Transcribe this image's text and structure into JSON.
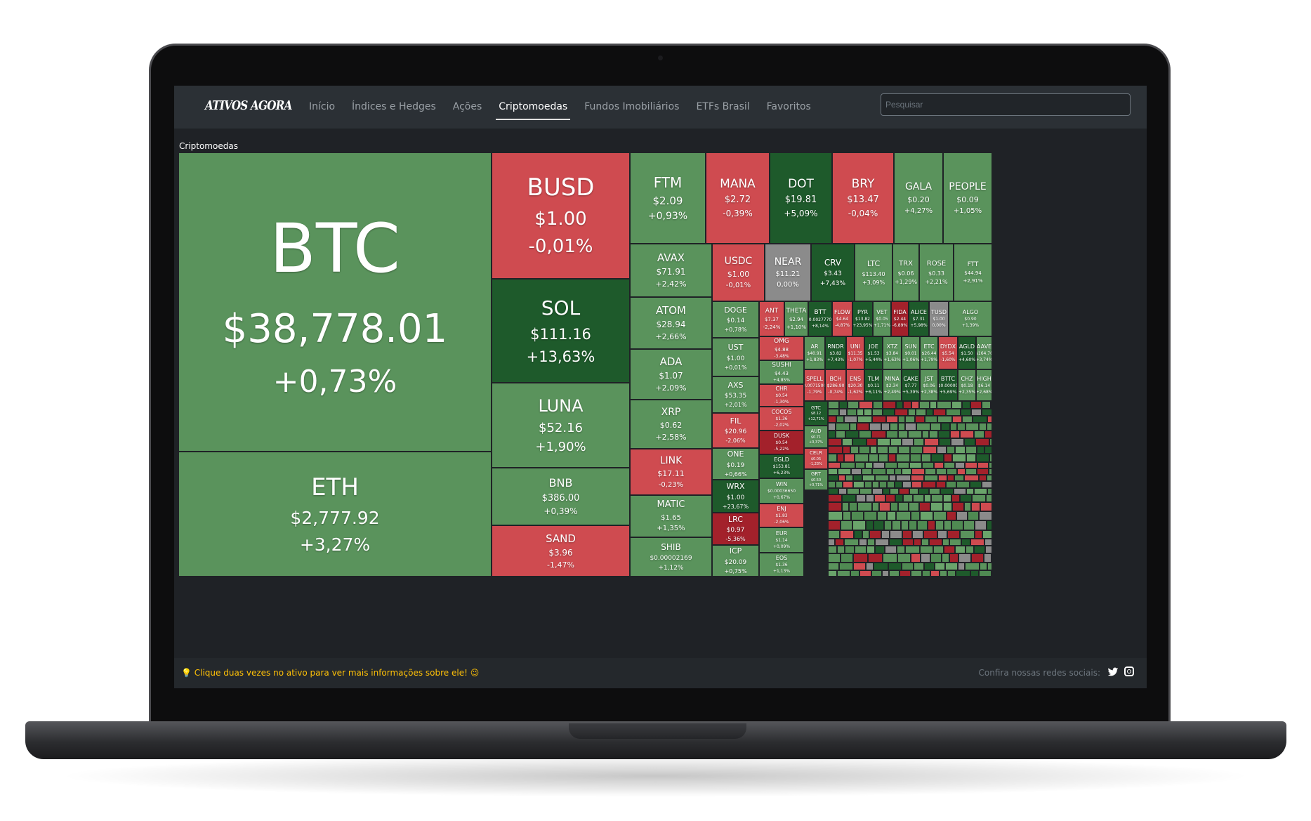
{
  "nav": {
    "logo": "ATIVOS AGORA",
    "items": [
      {
        "label": "Início",
        "active": false
      },
      {
        "label": "Índices e Hedges",
        "active": false
      },
      {
        "label": "Ações",
        "active": false
      },
      {
        "label": "Criptomoedas",
        "active": true
      },
      {
        "label": "Fundos Imobiliários",
        "active": false
      },
      {
        "label": "ETFs Brasil",
        "active": false
      },
      {
        "label": "Favoritos",
        "active": false
      }
    ],
    "search_placeholder": "Pesquisar"
  },
  "section_title": "Criptomoedas",
  "colors": {
    "green": "#5a935c",
    "dark_green": "#1e5a2b",
    "red": "#cf4b50",
    "dark_red": "#a3212b",
    "gray": "#8b8b8b"
  },
  "tiles": [
    {
      "symbol": "BTC",
      "price": "$38,778.01",
      "change": "+0,73%",
      "color": "green"
    },
    {
      "symbol": "ETH",
      "price": "$2,777.92",
      "change": "+3,27%",
      "color": "green"
    },
    {
      "symbol": "BUSD",
      "price": "$1.00",
      "change": "-0,01%",
      "color": "red"
    },
    {
      "symbol": "SOL",
      "price": "$111.16",
      "change": "+13,63%",
      "color": "dark_green"
    },
    {
      "symbol": "LUNA",
      "price": "$52.16",
      "change": "+1,90%",
      "color": "green"
    },
    {
      "symbol": "BNB",
      "price": "$386.00",
      "change": "+0,39%",
      "color": "green"
    },
    {
      "symbol": "SAND",
      "price": "$3.96",
      "change": "-1,47%",
      "color": "red"
    },
    {
      "symbol": "FTM",
      "price": "$2.09",
      "change": "+0,93%",
      "color": "green"
    },
    {
      "symbol": "MANA",
      "price": "$2.72",
      "change": "-0,39%",
      "color": "red"
    },
    {
      "symbol": "DOT",
      "price": "$19.81",
      "change": "+5,09%",
      "color": "dark_green"
    },
    {
      "symbol": "BRY",
      "price": "$13.47",
      "change": "-0,04%",
      "color": "red"
    },
    {
      "symbol": "GALA",
      "price": "$0.20",
      "change": "+4,27%",
      "color": "green"
    },
    {
      "symbol": "PEOPLE",
      "price": "$0.09",
      "change": "+1,05%",
      "color": "green"
    },
    {
      "symbol": "AVAX",
      "price": "$71.91",
      "change": "+2,42%",
      "color": "green"
    },
    {
      "symbol": "USDC",
      "price": "$1.00",
      "change": "-0,01%",
      "color": "red"
    },
    {
      "symbol": "NEAR",
      "price": "$11.21",
      "change": "0,00%",
      "color": "gray"
    },
    {
      "symbol": "CRV",
      "price": "$3.43",
      "change": "+7,43%",
      "color": "dark_green"
    },
    {
      "symbol": "LTC",
      "price": "$113.40",
      "change": "+3,09%",
      "color": "green"
    },
    {
      "symbol": "TRX",
      "price": "$0.06",
      "change": "+1,29%",
      "color": "green"
    },
    {
      "symbol": "ROSE",
      "price": "$0.33",
      "change": "+2,21%",
      "color": "green"
    },
    {
      "symbol": "FTT",
      "price": "$44.94",
      "change": "+2,91%",
      "color": "green"
    },
    {
      "symbol": "ATOM",
      "price": "$28.94",
      "change": "+2,66%",
      "color": "green"
    },
    {
      "symbol": "ADA",
      "price": "$1.07",
      "change": "+2,09%",
      "color": "green"
    },
    {
      "symbol": "XRP",
      "price": "$0.62",
      "change": "+2,58%",
      "color": "green"
    },
    {
      "symbol": "LINK",
      "price": "$17.11",
      "change": "-0,23%",
      "color": "red"
    },
    {
      "symbol": "MATIC",
      "price": "$1.65",
      "change": "+1,35%",
      "color": "green"
    },
    {
      "symbol": "SHIB",
      "price": "$0.00002169",
      "change": "+1,12%",
      "color": "green"
    },
    {
      "symbol": "DOGE",
      "price": "$0.14",
      "change": "+0,78%",
      "color": "green"
    },
    {
      "symbol": "UST",
      "price": "$1.00",
      "change": "+0,01%",
      "color": "green"
    },
    {
      "symbol": "AXS",
      "price": "$53.35",
      "change": "+2,01%",
      "color": "green"
    },
    {
      "symbol": "FIL",
      "price": "$20.96",
      "change": "-2,06%",
      "color": "red"
    },
    {
      "symbol": "ONE",
      "price": "$0.19",
      "change": "+0,66%",
      "color": "green"
    },
    {
      "symbol": "WRX",
      "price": "$1.00",
      "change": "+23,67%",
      "color": "dark_green"
    },
    {
      "symbol": "LRC",
      "price": "$0.97",
      "change": "-5,36%",
      "color": "dark_red"
    },
    {
      "symbol": "ICP",
      "price": "$20.09",
      "change": "+0,75%",
      "color": "green"
    },
    {
      "symbol": "ANT",
      "price": "$7.37",
      "change": "-2,24%",
      "color": "red"
    },
    {
      "symbol": "THETA",
      "price": "$2.94",
      "change": "+1,10%",
      "color": "green"
    },
    {
      "symbol": "BTT",
      "price": "$0.00277700",
      "change": "+8,14%",
      "color": "dark_green"
    },
    {
      "symbol": "FLOW",
      "price": "$4.64",
      "change": "-4,87%",
      "color": "red"
    },
    {
      "symbol": "PYR",
      "price": "$13.82",
      "change": "+23,95%",
      "color": "dark_green"
    },
    {
      "symbol": "VET",
      "price": "$0.05",
      "change": "+1,71%",
      "color": "green"
    },
    {
      "symbol": "FIDA",
      "price": "$2.44",
      "change": "-6,89%",
      "color": "dark_red"
    },
    {
      "symbol": "ALICE",
      "price": "$7.31",
      "change": "+5,98%",
      "color": "dark_green"
    },
    {
      "symbol": "TUSD",
      "price": "$1.00",
      "change": "0,00%",
      "color": "gray"
    },
    {
      "symbol": "ALGO",
      "price": "$0.90",
      "change": "+1,39%",
      "color": "green"
    },
    {
      "symbol": "OMG",
      "price": "$4.88",
      "change": "-3,48%",
      "color": "red"
    },
    {
      "symbol": "AR",
      "price": "$40.91",
      "change": "+1,83%",
      "color": "green"
    },
    {
      "symbol": "RNDR",
      "price": "$3.82",
      "change": "+7,43%",
      "color": "dark_green"
    },
    {
      "symbol": "UNI",
      "price": "$11.35",
      "change": "-1,07%",
      "color": "red"
    },
    {
      "symbol": "JOE",
      "price": "$1.53",
      "change": "+5,44%",
      "color": "dark_green"
    },
    {
      "symbol": "XTZ",
      "price": "$3.84",
      "change": "+1,63%",
      "color": "green"
    },
    {
      "symbol": "SUN",
      "price": "$0.01",
      "change": "+1,06%",
      "color": "green"
    },
    {
      "symbol": "ETC",
      "price": "$26.44",
      "change": "+1,79%",
      "color": "green"
    },
    {
      "symbol": "DYDX",
      "price": "$5.54",
      "change": "-1,60%",
      "color": "red"
    },
    {
      "symbol": "AGLD",
      "price": "$1.50",
      "change": "+4,60%",
      "color": "dark_green"
    },
    {
      "symbol": "AAVE",
      "price": "$164.70",
      "change": "+3,74%",
      "color": "green"
    },
    {
      "symbol": "SUSHI",
      "price": "$4.43",
      "change": "+4,85%",
      "color": "green"
    },
    {
      "symbol": "SPELL",
      "price": "$0.00715000",
      "change": "-1,79%",
      "color": "red"
    },
    {
      "symbol": "BCH",
      "price": "$286.90",
      "change": "-0,74%",
      "color": "red"
    },
    {
      "symbol": "ENS",
      "price": "$20.30",
      "change": "-1,62%",
      "color": "red"
    },
    {
      "symbol": "TLM",
      "price": "$0.11",
      "change": "+6,11%",
      "color": "dark_green"
    },
    {
      "symbol": "MINA",
      "price": "$2.34",
      "change": "+2,49%",
      "color": "green"
    },
    {
      "symbol": "CAKE",
      "price": "$7.77",
      "change": "+5,39%",
      "color": "dark_green"
    },
    {
      "symbol": "JST",
      "price": "$0.06",
      "change": "+2,38%",
      "color": "green"
    },
    {
      "symbol": "BTTC",
      "price": "$0.00000",
      "change": "+5,69%",
      "color": "dark_green"
    },
    {
      "symbol": "CHZ",
      "price": "$0.18",
      "change": "+2,35%",
      "color": "green"
    },
    {
      "symbol": "HIGH",
      "price": "$6.14",
      "change": "+2,68%",
      "color": "green"
    },
    {
      "symbol": "CHR",
      "price": "$0.54",
      "change": "-1,30%",
      "color": "red"
    },
    {
      "symbol": "COCOS",
      "price": "$1.36",
      "change": "-2,02%",
      "color": "red"
    },
    {
      "symbol": "DUSK",
      "price": "$0.54",
      "change": "-5,22%",
      "color": "dark_red"
    },
    {
      "symbol": "EGLD",
      "price": "$153.81",
      "change": "+6,23%",
      "color": "dark_green"
    },
    {
      "symbol": "WIN",
      "price": "$0.00036650",
      "change": "+0,67%",
      "color": "green"
    },
    {
      "symbol": "ENJ",
      "price": "$1.83",
      "change": "-2,06%",
      "color": "red"
    },
    {
      "symbol": "EUR",
      "price": "$1.14",
      "change": "+0,09%",
      "color": "green"
    },
    {
      "symbol": "EOS",
      "price": "$1.36",
      "change": "+1,13%",
      "color": "green"
    },
    {
      "symbol": "GTC",
      "price": "$8.12",
      "change": "+12,71%",
      "color": "dark_green"
    },
    {
      "symbol": "AUD",
      "price": "$0.71",
      "change": "+0,37%",
      "color": "green"
    },
    {
      "symbol": "CELR",
      "price": "$0.05",
      "change": "-1,23%",
      "color": "red"
    },
    {
      "symbol": "GRT",
      "price": "$0.50",
      "change": "+0,71%",
      "color": "green"
    }
  ],
  "footer": {
    "hint": "💡 Clique duas vezes no ativo para ver mais informações sobre ele! 😉",
    "social_label": "Confira nossas redes sociais:"
  }
}
